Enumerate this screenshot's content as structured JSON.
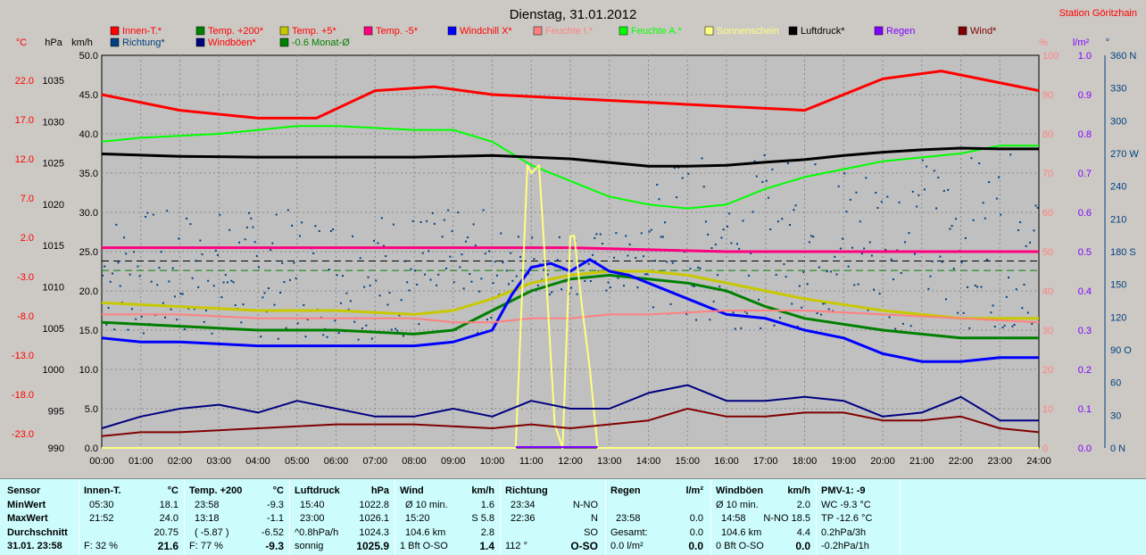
{
  "title": "Dienstag, 31.01.2012",
  "station": "Station Göritzhain",
  "colors": {
    "plot_bg": "#c0c0c0",
    "grid": "#8a8a8a",
    "panel_bg": "#ccfcfc"
  },
  "legend": [
    {
      "label": "Innen-T.*",
      "color": "#ff0000"
    },
    {
      "label": "Temp. +200*",
      "color": "#008000"
    },
    {
      "label": "Temp. +5*",
      "color": "#c8c800"
    },
    {
      "label": "Temp. -5*",
      "color": "#ff0080"
    },
    {
      "label": "Windchill X*",
      "color": "#0000ff"
    },
    {
      "label": "Feuchte I.*",
      "color": "#ff8080"
    },
    {
      "label": "Feuchte A.*",
      "color": "#00ff00"
    },
    {
      "label": "Sonnenschein",
      "color": "#ffff80"
    },
    {
      "label": "Luftdruck*",
      "color": "#000000"
    },
    {
      "label": "Regen",
      "color": "#8000ff"
    },
    {
      "label": "Wind*",
      "color": "#800000"
    },
    {
      "label": "Richtung*",
      "color": "#004080"
    },
    {
      "label": "Windböen*",
      "color": "#000080"
    },
    {
      "label": "-0.6 Monat-Ø",
      "color": "#008000"
    }
  ],
  "chart_data": {
    "type": "line",
    "title": "Dienstag, 31.01.2012",
    "x_ticks": [
      "00:00",
      "01:00",
      "02:00",
      "03:00",
      "04:00",
      "05:00",
      "06:00",
      "07:00",
      "08:00",
      "09:00",
      "10:00",
      "11:00",
      "12:00",
      "13:00",
      "14:00",
      "15:00",
      "16:00",
      "17:00",
      "18:00",
      "19:00",
      "20:00",
      "21:00",
      "22:00",
      "23:00",
      "24:00"
    ],
    "axes": {
      "temp_c": {
        "unit": "°C",
        "ticks": [
          "22.0",
          "17.0",
          "12.0",
          "7.0",
          "2.0",
          "-3.0",
          "-8.0",
          "-13.0",
          "-18.0",
          "-23.0"
        ]
      },
      "pressure_hpa": {
        "unit": "hPa",
        "ticks": [
          "1035",
          "1030",
          "1025",
          "1020",
          "1015",
          "1010",
          "1005",
          "1000",
          "995",
          "990"
        ]
      },
      "wind_kmh": {
        "unit": "km/h",
        "ticks": [
          "50.0",
          "45.0",
          "40.0",
          "35.0",
          "30.0",
          "25.0",
          "20.0",
          "15.0",
          "10.0",
          "5.0",
          "0.0"
        ]
      },
      "humidity_pct": {
        "unit": "%",
        "ticks": [
          "100",
          "90",
          "80",
          "70",
          "60",
          "50",
          "40",
          "30",
          "20",
          "10",
          "0"
        ]
      },
      "rain_lm2": {
        "unit": "l/m²",
        "ticks": [
          "1.0",
          "0.9",
          "0.8",
          "0.7",
          "0.6",
          "0.5",
          "0.4",
          "0.3",
          "0.2",
          "0.1",
          "0.0"
        ]
      },
      "direction_deg": {
        "unit": "°",
        "ticks": [
          "360 N",
          "330",
          "300",
          "270 W",
          "240",
          "210",
          "180 S",
          "150",
          "120",
          "90 O",
          "60",
          "30",
          "0 N"
        ]
      }
    },
    "series": [
      {
        "name": "Innen-T.*",
        "axis": "wind_kmh",
        "x": [
          0,
          2,
          4,
          5.5,
          7,
          8.5,
          10,
          12,
          14,
          16,
          18,
          19,
          20,
          21.5,
          24
        ],
        "values": [
          45.0,
          43.0,
          42.0,
          42.0,
          45.5,
          46.0,
          45.0,
          44.5,
          44.0,
          43.5,
          43.0,
          45.0,
          47.0,
          48.0,
          45.5
        ]
      },
      {
        "name": "Temp. +200*",
        "axis": "wind_kmh",
        "x": [
          0,
          2,
          4,
          6,
          8,
          9,
          10,
          11,
          12,
          13,
          14,
          15,
          16,
          17,
          18,
          20,
          22,
          24
        ],
        "values": [
          16.0,
          15.5,
          15.0,
          15.0,
          14.5,
          15.0,
          17.5,
          20.0,
          21.5,
          22.0,
          21.5,
          21.0,
          20.0,
          18.0,
          16.5,
          15.0,
          14.0,
          14.0
        ]
      },
      {
        "name": "Temp. +5*",
        "axis": "wind_kmh",
        "x": [
          0,
          2,
          4,
          6,
          8,
          9,
          10,
          11,
          12,
          13,
          14,
          15,
          16,
          17,
          18,
          20,
          22,
          24
        ],
        "values": [
          18.5,
          18.0,
          17.5,
          17.5,
          17.0,
          17.5,
          19.0,
          21.0,
          22.0,
          22.5,
          22.5,
          22.0,
          21.0,
          20.0,
          19.0,
          17.5,
          16.5,
          16.5
        ]
      },
      {
        "name": "Temp. -5*",
        "axis": "wind_kmh",
        "x": [
          0,
          4,
          8,
          12,
          16,
          20,
          24
        ],
        "values": [
          25.5,
          25.5,
          25.5,
          25.5,
          25.0,
          25.0,
          25.0
        ]
      },
      {
        "name": "Windchill X*",
        "axis": "wind_kmh",
        "x": [
          0,
          1,
          2,
          4,
          6,
          8,
          9,
          10,
          10.5,
          11,
          11.5,
          12,
          12.5,
          13,
          13.5,
          14,
          15,
          16,
          17,
          18,
          19,
          20,
          21,
          22,
          23,
          24
        ],
        "values": [
          14.0,
          13.5,
          13.5,
          13.0,
          13.0,
          13.0,
          13.5,
          15.0,
          19.5,
          23.0,
          23.5,
          22.5,
          24.0,
          22.5,
          22.0,
          21.0,
          19.0,
          17.0,
          16.5,
          15.0,
          14.0,
          12.0,
          11.0,
          11.0,
          11.5,
          11.5
        ]
      },
      {
        "name": "Feuchte I.*",
        "axis": "humidity_pct",
        "x": [
          0,
          2,
          4,
          6,
          8,
          9,
          10,
          11,
          12,
          13,
          14,
          16,
          18,
          20,
          22,
          24
        ],
        "values": [
          34,
          34,
          33,
          33,
          33,
          32,
          32,
          33,
          33,
          34,
          34,
          35,
          35,
          34,
          33,
          32
        ]
      },
      {
        "name": "Feuchte A.*",
        "axis": "humidity_pct",
        "x": [
          0,
          1,
          3,
          5,
          6,
          8,
          9,
          10,
          11,
          12,
          13,
          14,
          15,
          16,
          17,
          18,
          19,
          20,
          21,
          22,
          23,
          24
        ],
        "values": [
          78,
          79,
          80,
          82,
          82,
          81,
          81,
          78,
          72,
          68,
          64,
          62,
          61,
          62,
          66,
          69,
          71,
          73,
          74,
          75,
          77,
          77
        ]
      },
      {
        "name": "Sonnenschein",
        "axis": "wind_kmh",
        "x": [
          0,
          10.6,
          10.9,
          11.0,
          11.2,
          11.4,
          11.6,
          11.8,
          12.0,
          12.1,
          12.3,
          12.5,
          12.7,
          24
        ],
        "values": [
          0,
          0,
          36,
          35,
          36,
          20,
          3,
          0,
          27,
          27,
          18,
          10,
          0,
          0
        ]
      },
      {
        "name": "Luftdruck*",
        "axis": "pressure_hpa",
        "x": [
          0,
          2,
          4,
          6,
          8,
          10,
          12,
          14,
          15,
          16,
          17,
          18,
          19,
          20,
          21,
          22,
          23,
          24
        ],
        "values": [
          1025.8,
          1025.5,
          1025.4,
          1025.4,
          1025.4,
          1025.6,
          1025.2,
          1024.3,
          1024.3,
          1024.4,
          1024.8,
          1025.1,
          1025.6,
          1026.0,
          1026.3,
          1026.5,
          1026.4,
          1026.4
        ]
      },
      {
        "name": "Wind*",
        "axis": "wind_kmh",
        "x": [
          0,
          1,
          2,
          4,
          6,
          8,
          10,
          11,
          12,
          13,
          14,
          15,
          16,
          17,
          18,
          19,
          20,
          21,
          22,
          23,
          24
        ],
        "values": [
          1.5,
          2.0,
          2.0,
          2.5,
          3.0,
          3.0,
          2.5,
          3.0,
          2.5,
          3.0,
          3.5,
          5.0,
          4.0,
          4.0,
          4.5,
          4.5,
          3.5,
          3.5,
          4.0,
          2.5,
          2.0
        ]
      },
      {
        "name": "Windböen*",
        "axis": "wind_kmh",
        "x": [
          0,
          1,
          2,
          3,
          4,
          5,
          6,
          7,
          8,
          9,
          10,
          11,
          12,
          13,
          14,
          15,
          16,
          17,
          18,
          19,
          20,
          21,
          22,
          23,
          24
        ],
        "values": [
          2.5,
          4.0,
          5.0,
          5.5,
          4.5,
          6.0,
          5.0,
          4.0,
          4.0,
          5.0,
          4.0,
          6.0,
          5.0,
          5.0,
          7.0,
          8.0,
          6.0,
          6.0,
          6.5,
          6.0,
          4.0,
          4.5,
          6.5,
          3.5,
          3.5
        ]
      },
      {
        "name": "-0.6 Monat-Ø",
        "axis": "wind_kmh",
        "x": [
          0,
          24
        ],
        "values": [
          22.6,
          22.6
        ]
      }
    ],
    "grid": true,
    "legend_position": "top"
  },
  "stats": {
    "labels": {
      "sensor": "Sensor",
      "min": "MinWert",
      "max": "MaxWert",
      "avg": "Durchschnitt",
      "now": "31.01. 23:58"
    },
    "innen": {
      "title": "Innen-T.",
      "unit": "°C",
      "min_time": "05:30",
      "min": "18.1",
      "max_time": "21:52",
      "max": "24.0",
      "avg": "20.75",
      "now_hum": "F: 32 %",
      "now": "21.6"
    },
    "temp200": {
      "title": "Temp. +200",
      "unit": "°C",
      "min_time": "23:58",
      "min": "-9.3",
      "max_time": "13:18",
      "max": "-1.1",
      "avg_extra": "( -5.87 )",
      "avg": "-6.52",
      "now_hum": "F: 77 %",
      "now": "-9.3"
    },
    "luftdruck": {
      "title": "Luftdruck",
      "unit": "hPa",
      "min_time": "15:40",
      "min": "1022.8",
      "max_time": "23:00",
      "max": "1026.1",
      "avg": "1024.3",
      "trend": "^0.8hPa/h",
      "state": "sonnig",
      "now": "1025.9"
    },
    "wind": {
      "title": "Wind",
      "unit": "km/h",
      "min_label": "Ø 10 min.",
      "min": "1.6",
      "max_time": "15:20",
      "max": "S 5.8",
      "avg_label": "104.6 km",
      "avg": "2.8",
      "now_label": "1 Bft O-SO",
      "now": "1.4"
    },
    "richtung": {
      "title": "Richtung",
      "min_time": "23:34",
      "min": "N-NO",
      "max_time": "22:36",
      "max": "N",
      "avg": "SO",
      "now_deg": "112 °",
      "now": "O-SO"
    },
    "regen": {
      "title": "Regen",
      "unit": "l/m²",
      "max_time": "23:58",
      "max": "0.0",
      "avg_label": "Gesamt:",
      "avg": "0.0",
      "now_label": "0.0 l/m²",
      "now": "0.0"
    },
    "windboen": {
      "title": "Windböen",
      "unit": "km/h",
      "min_label": "Ø 10 min.",
      "min": "2.0",
      "max_time": "14:58",
      "max": "N-NO 18.5",
      "avg_label": "104.6 km",
      "avg": "4.4",
      "now_label": "0 Bft O-SO",
      "now": "0.0"
    },
    "pmv": {
      "title": "PMV-1: -9",
      "r1": "WC -9.3 °C",
      "r2": "TP -12.6 °C",
      "r3": "0.2hPa/3h",
      "r4": "-0.2hPa/1h"
    }
  }
}
